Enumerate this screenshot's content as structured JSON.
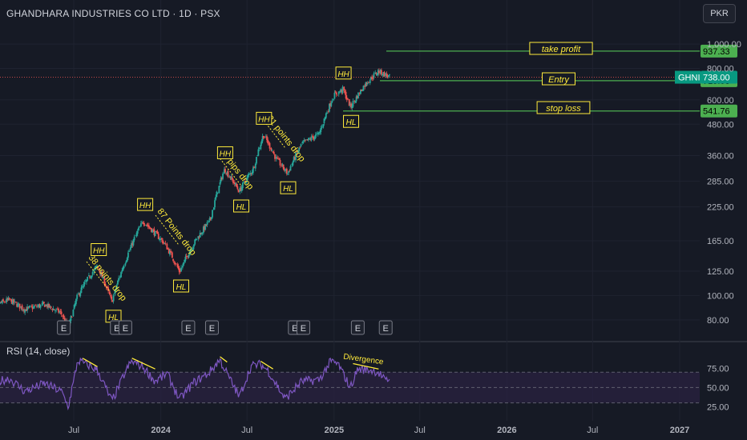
{
  "header": {
    "title": "GHANDHARA INDUSTRIES CO LTD  · 1D · PSX",
    "currency": "PKR"
  },
  "rsi_panel": {
    "title": "RSI (14, close)"
  },
  "colors": {
    "background": "#161a25",
    "candle_up": "#26a69a",
    "candle_down": "#ef5350",
    "level_line": "#4caf50",
    "annotation": "#ffeb3b",
    "rsi_line": "#7e57c2",
    "rsi_band": "#2a2240",
    "price_marker": "#089981"
  },
  "chart_data": [
    {
      "type": "candlestick",
      "scale": "log",
      "ylim": [
        68,
        1150
      ],
      "y_ticks": [
        "1,000.00",
        "800.00",
        "600.00",
        "480.00",
        "360.00",
        "285.00",
        "225.00",
        "165.00",
        "125.00",
        "100.00",
        "80.00"
      ],
      "y_tick_values": [
        1000,
        800,
        600,
        480,
        360,
        285,
        225,
        165,
        125,
        100,
        80
      ],
      "x_ticks": [
        "Jul",
        "2024",
        "Jul",
        "2025",
        "Jul",
        "2026",
        "Jul",
        "2027"
      ],
      "x_tick_dates": [
        "2023-07-01",
        "2024-01-01",
        "2024-07-01",
        "2025-01-01",
        "2025-07-01",
        "2026-01-01",
        "2026-07-01",
        "2027-01-01"
      ],
      "price_path": [
        [
          "2023-01-05",
          90
        ],
        [
          "2023-02-15",
          96
        ],
        [
          "2023-03-20",
          88
        ],
        [
          "2023-05-01",
          92
        ],
        [
          "2023-06-05",
          85
        ],
        [
          "2023-06-20",
          74
        ],
        [
          "2023-07-10",
          100
        ],
        [
          "2023-08-05",
          120
        ],
        [
          "2023-08-20",
          131
        ],
        [
          "2023-09-20",
          94
        ],
        [
          "2023-10-20",
          140
        ],
        [
          "2023-11-25",
          198
        ],
        [
          "2023-12-10",
          185
        ],
        [
          "2024-01-10",
          160
        ],
        [
          "2024-02-10",
          124
        ],
        [
          "2024-03-10",
          160
        ],
        [
          "2024-04-15",
          200
        ],
        [
          "2024-05-15",
          318
        ],
        [
          "2024-06-15",
          260
        ],
        [
          "2024-07-15",
          320
        ],
        [
          "2024-08-05",
          436
        ],
        [
          "2024-09-01",
          350
        ],
        [
          "2024-09-25",
          305
        ],
        [
          "2024-10-25",
          400
        ],
        [
          "2024-12-01",
          440
        ],
        [
          "2025-01-01",
          625
        ],
        [
          "2025-01-20",
          660
        ],
        [
          "2025-02-05",
          560
        ],
        [
          "2025-03-10",
          700
        ],
        [
          "2025-04-05",
          780
        ],
        [
          "2025-04-30",
          738
        ]
      ],
      "last_price": 738,
      "levels": [
        {
          "name": "take profit",
          "value": 937.33,
          "label": "937.33"
        },
        {
          "name": "Entry",
          "value": 715.08,
          "label": "715.08"
        },
        {
          "name": "stop loss",
          "value": 541.76,
          "label": "541.76"
        }
      ],
      "price_marker": {
        "symbol": "GHNI",
        "label": "738.00",
        "value": 738
      },
      "annotations": [
        {
          "text": "take profit",
          "kind": "box"
        },
        {
          "text": "Entry",
          "kind": "box"
        },
        {
          "text": "stop loss",
          "kind": "box"
        },
        {
          "text": "38 points drop",
          "kind": "angled"
        },
        {
          "text": "87 Points drop",
          "kind": "angled"
        },
        {
          "text": "68 pips drop",
          "kind": "angled"
        },
        {
          "text": "131 points drop",
          "kind": "angled"
        }
      ],
      "swing_labels": [
        {
          "text": "HH",
          "date": "2023-08-22",
          "value": 131
        },
        {
          "text": "HL",
          "date": "2023-09-22",
          "value": 94
        },
        {
          "text": "HH",
          "date": "2023-11-28",
          "value": 198
        },
        {
          "text": "HL",
          "date": "2024-02-12",
          "value": 124
        },
        {
          "text": "HH",
          "date": "2024-05-15",
          "value": 318
        },
        {
          "text": "HL",
          "date": "2024-06-18",
          "value": 258
        },
        {
          "text": "HH",
          "date": "2024-08-05",
          "value": 436
        },
        {
          "text": "HL",
          "date": "2024-09-25",
          "value": 305
        },
        {
          "text": "HH",
          "date": "2025-01-20",
          "value": 660
        },
        {
          "text": "HL",
          "date": "2025-02-05",
          "value": 560
        }
      ],
      "earnings_markers": {
        "label": "E",
        "dates": [
          "2023-06-10",
          "2023-09-30",
          "2023-10-18",
          "2024-02-28",
          "2024-04-18",
          "2024-10-10",
          "2024-10-28",
          "2025-02-20",
          "2025-04-20"
        ]
      }
    },
    {
      "type": "line",
      "name": "RSI (14, close)",
      "ylim": [
        15,
        90
      ],
      "y_ticks": [
        "75.00",
        "50.00",
        "25.00"
      ],
      "y_tick_values": [
        75,
        50,
        25
      ],
      "band": [
        30,
        70
      ],
      "rsi_path": [
        [
          "2023-01-05",
          55
        ],
        [
          "2023-02-15",
          62
        ],
        [
          "2023-03-20",
          45
        ],
        [
          "2023-05-01",
          55
        ],
        [
          "2023-06-05",
          45
        ],
        [
          "2023-06-20",
          25
        ],
        [
          "2023-07-10",
          85
        ],
        [
          "2023-08-05",
          78
        ],
        [
          "2023-08-20",
          73
        ],
        [
          "2023-09-20",
          32
        ],
        [
          "2023-10-20",
          72
        ],
        [
          "2023-11-01",
          84
        ],
        [
          "2023-11-25",
          77
        ],
        [
          "2023-12-20",
          58
        ],
        [
          "2024-01-15",
          68
        ],
        [
          "2024-02-10",
          34
        ],
        [
          "2024-03-10",
          56
        ],
        [
          "2024-04-10",
          68
        ],
        [
          "2024-05-05",
          86
        ],
        [
          "2024-06-15",
          38
        ],
        [
          "2024-07-10",
          78
        ],
        [
          "2024-07-30",
          80
        ],
        [
          "2024-08-15",
          72
        ],
        [
          "2024-09-20",
          35
        ],
        [
          "2024-10-25",
          58
        ],
        [
          "2024-12-01",
          60
        ],
        [
          "2024-12-25",
          84
        ],
        [
          "2025-01-10",
          80
        ],
        [
          "2025-02-05",
          50
        ],
        [
          "2025-02-20",
          74
        ],
        [
          "2025-03-20",
          73
        ],
        [
          "2025-04-05",
          70
        ],
        [
          "2025-04-20",
          58
        ],
        [
          "2025-04-30",
          62
        ]
      ],
      "divergence_lines": [
        {
          "from": [
            "2023-07-20",
            84
          ],
          "to": [
            "2023-08-20",
            73
          ]
        },
        {
          "from": [
            "2023-11-01",
            84
          ],
          "to": [
            "2023-12-20",
            70
          ]
        },
        {
          "from": [
            "2024-05-05",
            86
          ],
          "to": [
            "2024-05-20",
            79
          ]
        },
        {
          "from": [
            "2024-07-30",
            80
          ],
          "to": [
            "2024-08-25",
            70
          ]
        },
        {
          "from": [
            "2025-02-10",
            77
          ],
          "to": [
            "2025-04-05",
            70
          ]
        }
      ],
      "annotation": "Divergence"
    }
  ]
}
